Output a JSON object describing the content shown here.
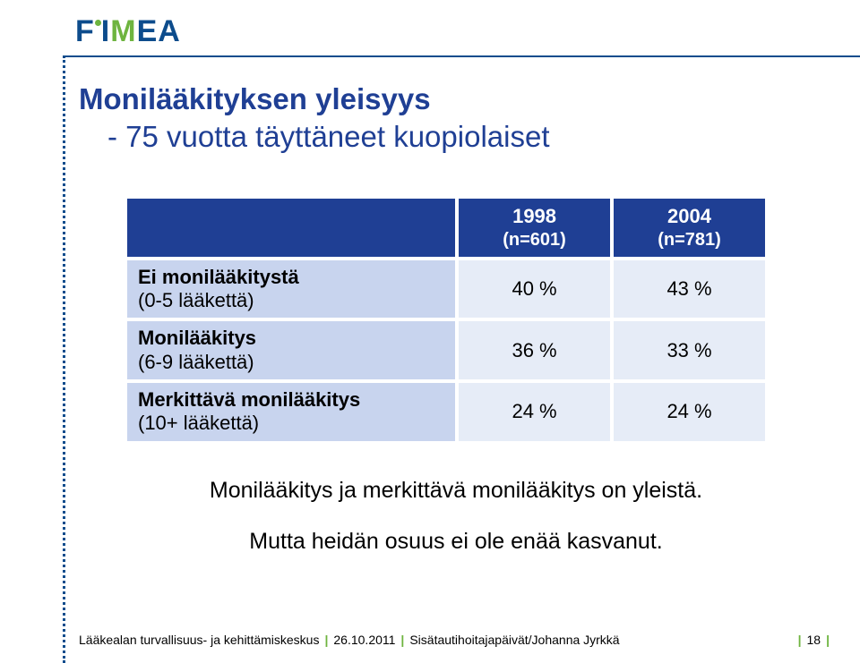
{
  "logo": {
    "letters": [
      "F",
      "I",
      "M",
      "E",
      "A"
    ]
  },
  "title": {
    "line1": "Monilääkityksen yleisyys",
    "line2": "- 75 vuotta täyttäneet kuopiolaiset"
  },
  "table": {
    "header_blank": "",
    "columns": [
      {
        "year": "1998",
        "n": "(n=601)"
      },
      {
        "year": "2004",
        "n": "(n=781)"
      }
    ],
    "rows": [
      {
        "label": "Ei monilääkitystä",
        "sub": "(0-5 lääkettä)",
        "v1": "40 %",
        "v2": "43 %"
      },
      {
        "label": "Monilääkitys",
        "sub": "(6-9 lääkettä)",
        "v1": "36 %",
        "v2": "33 %"
      },
      {
        "label": "Merkittävä monilääkitys",
        "sub": "(10+ lääkettä)",
        "v1": "24 %",
        "v2": "24 %"
      }
    ],
    "colors": {
      "header_bg": "#1f3f94",
      "header_fg": "#ffffff",
      "cat_bg": "#c8d4ee",
      "val_bg": "#e6ecf7"
    }
  },
  "paragraphs": {
    "p1": "Monilääkitys ja merkittävä monilääkitys on yleistä.",
    "p2": "Mutta heidän osuus ei ole enää kasvanut."
  },
  "footer": {
    "org": "Lääkealan turvallisuus- ja kehittämiskeskus",
    "date": "26.10.2011",
    "event": "Sisätautihoitajapäivät/Johanna Jyrkkä",
    "page": "18"
  }
}
